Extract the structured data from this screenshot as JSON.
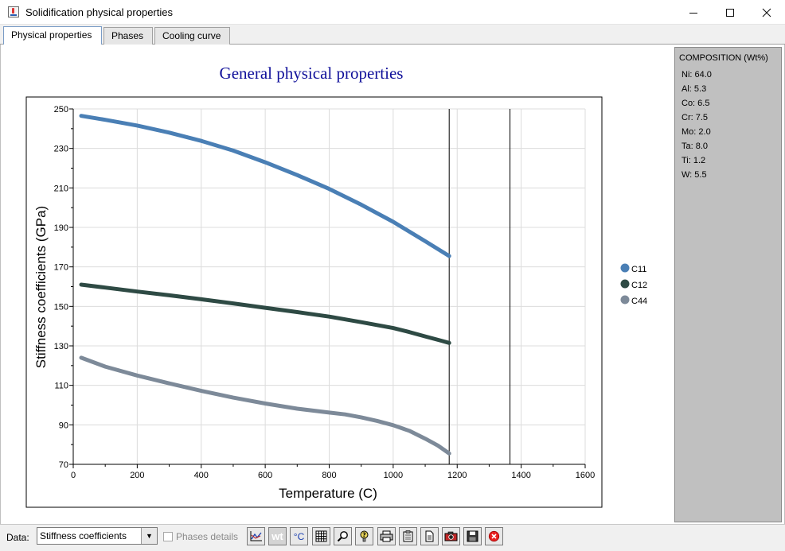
{
  "window": {
    "title": "Solidification physical properties"
  },
  "tabs": [
    {
      "label": "Physical properties",
      "active": true
    },
    {
      "label": "Phases",
      "active": false
    },
    {
      "label": "Cooling curve",
      "active": false
    }
  ],
  "composition": {
    "title": "COMPOSITION (Wt%)",
    "items": [
      {
        "label": "Ni: 64.0"
      },
      {
        "label": "Al: 5.3"
      },
      {
        "label": "Co: 6.5"
      },
      {
        "label": "Cr: 7.5"
      },
      {
        "label": "Mo: 2.0"
      },
      {
        "label": "Ta: 8.0"
      },
      {
        "label": "Ti: 1.2"
      },
      {
        "label": "W: 5.5"
      }
    ]
  },
  "bottom": {
    "data_label": "Data:",
    "data_select": "Stiffness coefficients",
    "phases_details": "Phases details",
    "wt_button": "wt",
    "celsius_button": "°C"
  },
  "chart_data": {
    "type": "line",
    "title": "General physical properties",
    "xlabel": "Temperature (C)",
    "ylabel": "Stiffness coefficients (GPa)",
    "xlim": [
      0,
      1600
    ],
    "ylim": [
      70,
      250
    ],
    "xticks": [
      0,
      200,
      400,
      600,
      800,
      1000,
      1200,
      1400,
      1600
    ],
    "yticks": [
      70,
      90,
      110,
      130,
      150,
      170,
      190,
      210,
      230,
      250
    ],
    "grid": true,
    "legend": "right",
    "vlines": [
      1175,
      1365
    ],
    "series": [
      {
        "name": "C11",
        "color": "#4a7fb5",
        "x": [
          25,
          100,
          200,
          300,
          400,
          500,
          600,
          700,
          800,
          900,
          1000,
          1100,
          1175
        ],
        "y": [
          246.5,
          244.5,
          241.6,
          238.0,
          233.8,
          228.9,
          223.0,
          216.5,
          209.5,
          201.5,
          192.8,
          183.0,
          175.5
        ]
      },
      {
        "name": "C12",
        "color": "#2e4a44",
        "x": [
          25,
          100,
          200,
          300,
          400,
          500,
          600,
          700,
          800,
          900,
          1000,
          1050,
          1100,
          1150,
          1175
        ],
        "y": [
          161.0,
          159.5,
          157.5,
          155.6,
          153.6,
          151.5,
          149.3,
          147.1,
          144.8,
          142.0,
          139.0,
          137.0,
          134.8,
          132.6,
          131.5
        ]
      },
      {
        "name": "C44",
        "color": "#7d8a99",
        "x": [
          25,
          100,
          200,
          300,
          400,
          500,
          600,
          700,
          800,
          850,
          900,
          950,
          1000,
          1050,
          1100,
          1140,
          1175
        ],
        "y": [
          124.0,
          119.5,
          115.0,
          111.0,
          107.2,
          103.8,
          100.8,
          98.2,
          96.2,
          95.3,
          93.8,
          92.0,
          89.8,
          87.0,
          83.0,
          79.5,
          75.5
        ]
      }
    ]
  }
}
